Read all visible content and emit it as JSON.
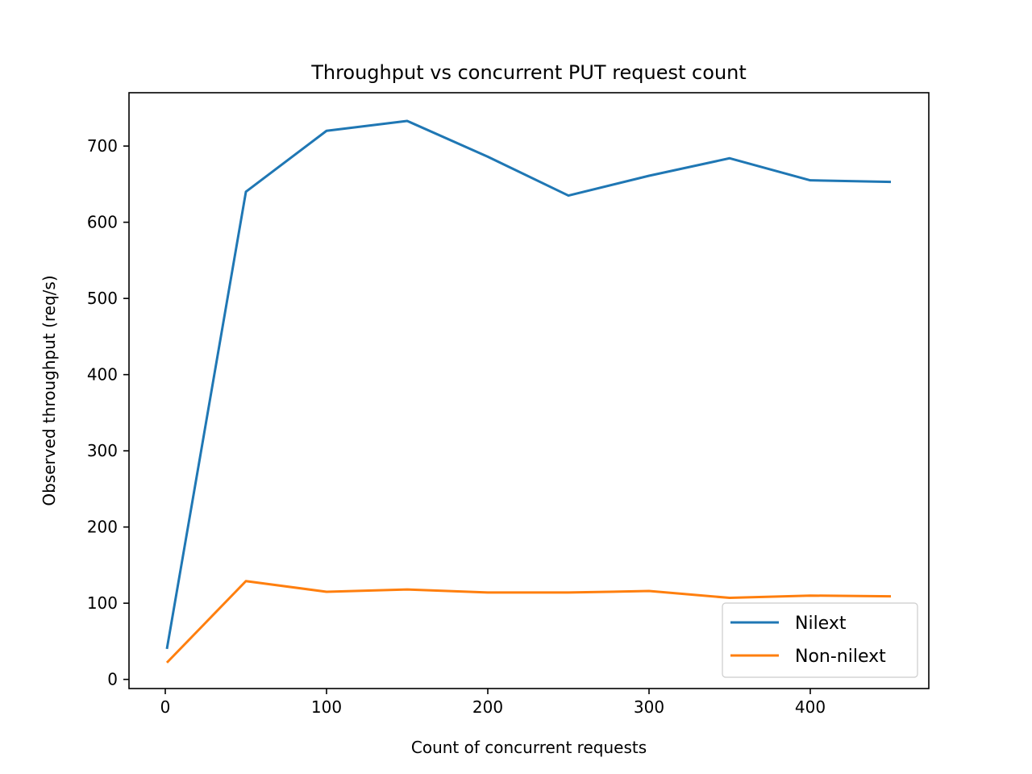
{
  "chart_data": {
    "type": "line",
    "title": "Throughput vs concurrent PUT request count",
    "xlabel": "Count of concurrent requests",
    "ylabel": "Observed throughput (req/s)",
    "xlim": [
      -22.5,
      473.5
    ],
    "ylim": [
      -12,
      770
    ],
    "xticks": [
      0,
      100,
      200,
      300,
      400
    ],
    "yticks": [
      0,
      100,
      200,
      300,
      400,
      500,
      600,
      700
    ],
    "grid": false,
    "legend_position": "lower right",
    "x": [
      1,
      50,
      100,
      150,
      200,
      250,
      300,
      350,
      400,
      450
    ],
    "series": [
      {
        "name": "Nilext",
        "color": "#1f77b4",
        "values": [
          40,
          640,
          720,
          733,
          686,
          635,
          661,
          684,
          655,
          653
        ]
      },
      {
        "name": "Non-nilext",
        "color": "#ff7f0e",
        "values": [
          22,
          129,
          115,
          118,
          114,
          114,
          116,
          107,
          110,
          109
        ]
      }
    ]
  }
}
